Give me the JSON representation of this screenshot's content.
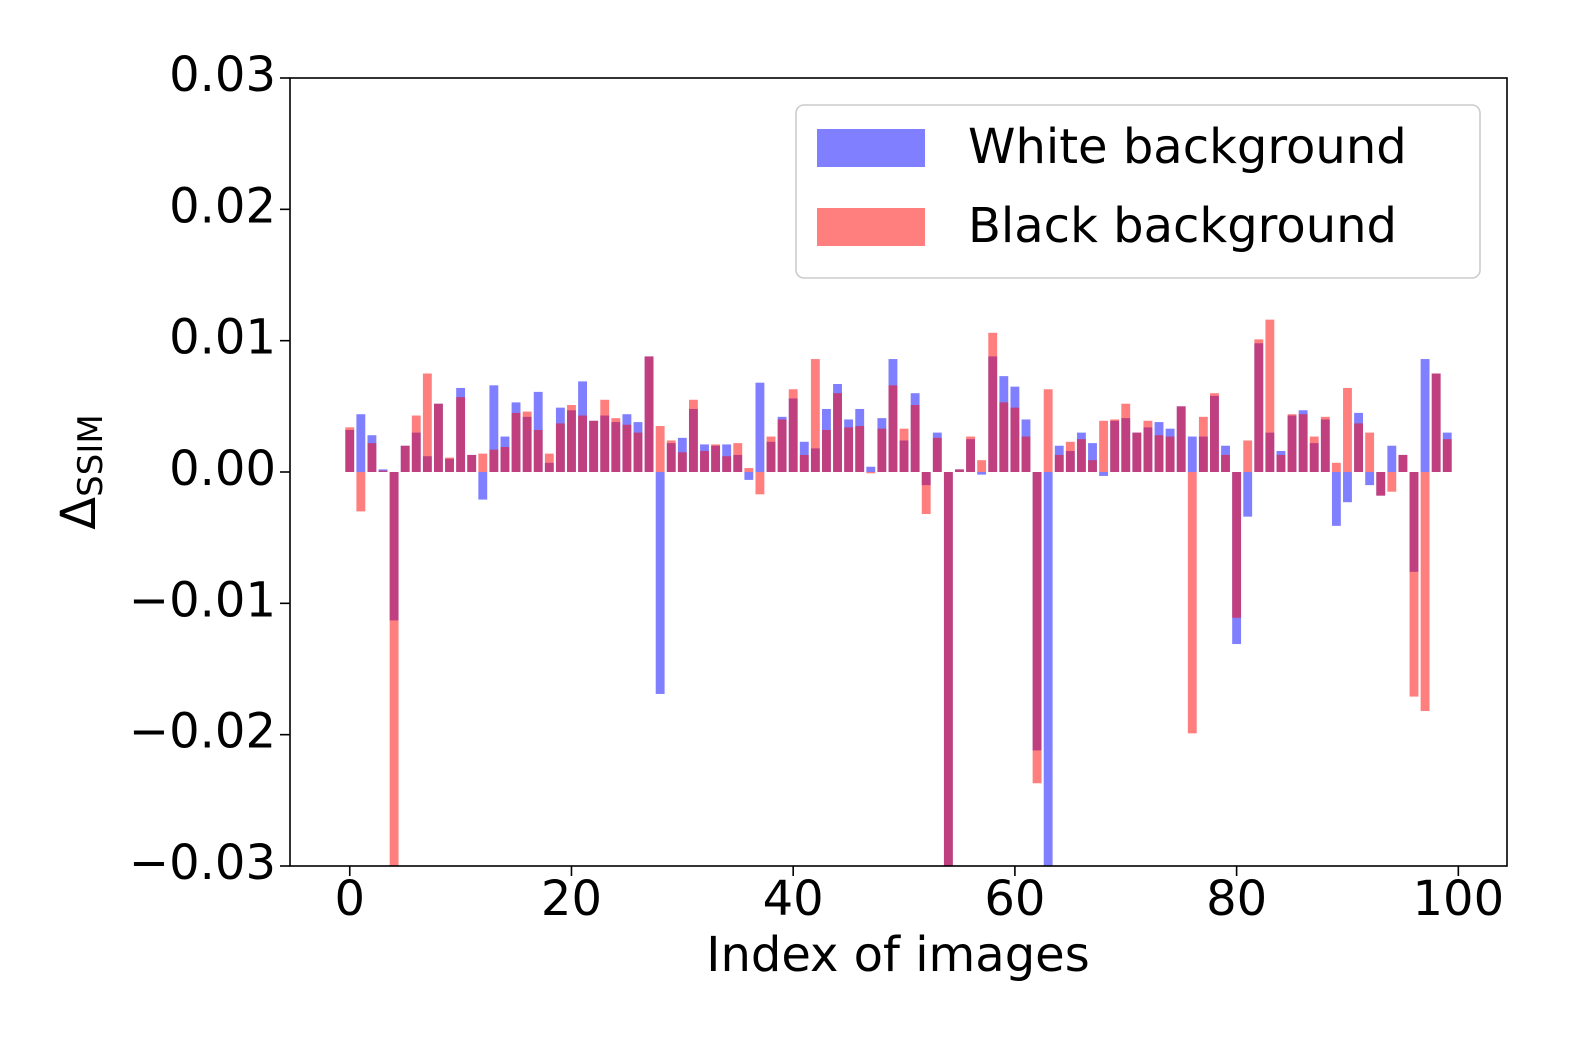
{
  "chart_data": {
    "type": "bar",
    "xlabel": "Index of images",
    "ylabel": "Δ",
    "ylabel_subscript": "SSIM",
    "x": [
      0,
      1,
      2,
      3,
      4,
      5,
      6,
      7,
      8,
      9,
      10,
      11,
      12,
      13,
      14,
      15,
      16,
      17,
      18,
      19,
      20,
      21,
      22,
      23,
      24,
      25,
      26,
      27,
      28,
      29,
      30,
      31,
      32,
      33,
      34,
      35,
      36,
      37,
      38,
      39,
      40,
      41,
      42,
      43,
      44,
      45,
      46,
      47,
      48,
      49,
      50,
      51,
      52,
      53,
      54,
      55,
      56,
      57,
      58,
      59,
      60,
      61,
      62,
      63,
      64,
      65,
      66,
      67,
      68,
      69,
      70,
      71,
      72,
      73,
      74,
      75,
      76,
      77,
      78,
      79,
      80,
      81,
      82,
      83,
      84,
      85,
      86,
      87,
      88,
      89,
      90,
      91,
      92,
      93,
      94,
      95,
      96,
      97,
      98,
      99
    ],
    "series": [
      {
        "name": "White background",
        "color": "#0000ff",
        "alpha": 0.5,
        "values": [
          0.0032,
          0.0044,
          0.0028,
          0.0002,
          -0.0113,
          0.002,
          0.003,
          0.0012,
          0.0052,
          0.001,
          0.0064,
          0.0013,
          -0.0021,
          0.0066,
          0.0027,
          0.0053,
          0.0042,
          0.0061,
          0.0007,
          0.0049,
          0.0047,
          0.0069,
          0.0039,
          0.0043,
          0.0038,
          0.0044,
          0.0038,
          0.0088,
          -0.0169,
          0.0022,
          0.0026,
          0.0048,
          0.0021,
          0.002,
          0.0021,
          0.0013,
          -0.0006,
          0.0068,
          0.0023,
          0.0042,
          0.0056,
          0.0023,
          0.0018,
          0.0048,
          0.0067,
          0.004,
          0.0048,
          0.0004,
          0.0041,
          0.0086,
          0.0024,
          0.006,
          -0.001,
          0.003,
          -0.032,
          0.0002,
          0.0025,
          -0.0002,
          0.0088,
          0.0073,
          0.0065,
          0.004,
          -0.0212,
          -0.032,
          0.002,
          0.0016,
          0.003,
          0.0022,
          -0.0003,
          0.0039,
          0.0041,
          0.003,
          0.0034,
          0.0038,
          0.0033,
          0.005,
          0.0027,
          0.0027,
          0.0058,
          0.002,
          -0.0131,
          -0.0034,
          0.0098,
          0.003,
          0.0016,
          0.0043,
          0.0047,
          0.0022,
          0.004,
          -0.0041,
          -0.0023,
          0.0045,
          -0.001,
          -0.0018,
          0.002,
          0.0013,
          -0.0076,
          0.0086,
          0.0075,
          0.003
        ]
      },
      {
        "name": "Black background",
        "color": "#ff0000",
        "alpha": 0.5,
        "values": [
          0.0034,
          -0.003,
          0.0022,
          0.0001,
          -0.032,
          0.002,
          0.0043,
          0.0075,
          0.0052,
          0.0011,
          0.0057,
          0.0013,
          0.0014,
          0.0017,
          0.0019,
          0.0045,
          0.0046,
          0.0032,
          0.0014,
          0.0037,
          0.0051,
          0.0043,
          0.0039,
          0.0055,
          0.0041,
          0.0036,
          0.003,
          0.0088,
          0.0035,
          0.0024,
          0.0015,
          0.0055,
          0.0016,
          0.0021,
          0.0012,
          0.0022,
          0.0003,
          -0.0017,
          0.0027,
          0.004,
          0.0063,
          0.0013,
          0.0086,
          0.0032,
          0.006,
          0.0034,
          0.0035,
          -0.0001,
          0.0033,
          0.0066,
          0.0033,
          0.0051,
          -0.0032,
          0.0026,
          -0.032,
          0.0002,
          0.0027,
          0.0009,
          0.0106,
          0.0053,
          0.0049,
          0.0027,
          -0.0237,
          0.0063,
          0.0013,
          0.0023,
          0.0025,
          0.0009,
          0.0039,
          0.004,
          0.0052,
          0.003,
          0.0039,
          0.0028,
          0.0027,
          0.005,
          -0.0199,
          0.0042,
          0.006,
          0.0013,
          -0.0111,
          0.0024,
          0.0101,
          0.0116,
          0.0013,
          0.0044,
          0.0044,
          0.0027,
          0.0042,
          0.0007,
          0.0064,
          0.0037,
          0.003,
          -0.0018,
          -0.0015,
          0.0013,
          -0.0171,
          -0.0182,
          0.0075,
          0.0025
        ]
      }
    ],
    "bar_width": 0.8,
    "xlim": [
      -5.39,
      104.39
    ],
    "xticks": [
      0,
      20,
      40,
      60,
      80,
      100
    ],
    "ylim": [
      -0.03,
      0.03
    ],
    "yticks": [
      {
        "value": -0.03,
        "label": "−0.03"
      },
      {
        "value": -0.02,
        "label": "−0.02"
      },
      {
        "value": -0.01,
        "label": "−0.01"
      },
      {
        "value": 0,
        "label": "0.00"
      },
      0.01,
      0.02,
      0.03
    ],
    "legend": "upper right",
    "grid": false
  }
}
